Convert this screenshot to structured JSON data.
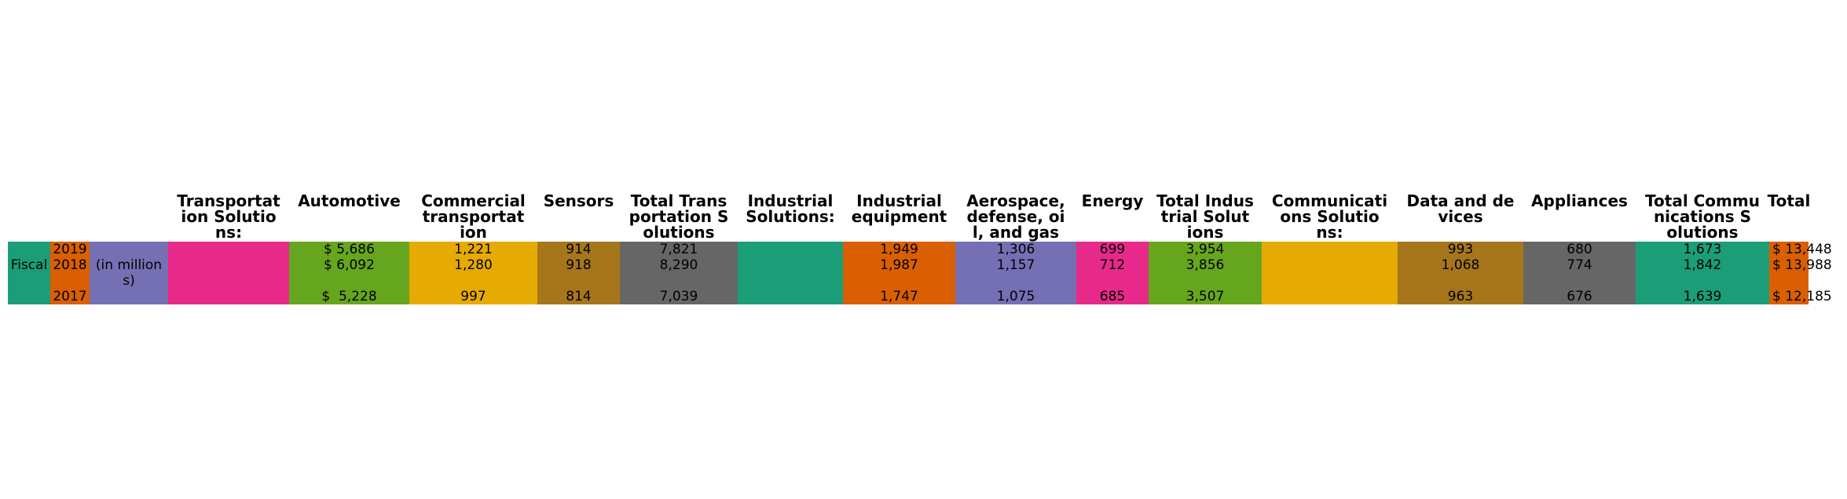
{
  "colors": {
    "teal": "#1b9e77",
    "orange": "#d95f02",
    "purple": "#7570b3",
    "magenta": "#e7298a",
    "green": "#66a61e",
    "yellow": "#e6ab02",
    "brown": "#a6761d",
    "gray": "#666666"
  },
  "chart_data": {
    "type": "table",
    "row_labels": {
      "fiscal": "Fiscal",
      "years": [
        "2019",
        "2018",
        "2017"
      ],
      "unit": "(in million\ns)"
    },
    "columns": [
      {
        "header": "Transportat\nion Solutio\nns:",
        "values": [
          "",
          "",
          ""
        ]
      },
      {
        "header": "Automotive",
        "values": [
          "$ 5,686",
          "$ 6,092",
          "$  5,228"
        ]
      },
      {
        "header": "Commercial\ntransportat\nion",
        "values": [
          "1,221",
          "1,280",
          "997"
        ]
      },
      {
        "header": "Sensors",
        "values": [
          "914",
          "918",
          "814"
        ]
      },
      {
        "header": "Total Trans\nportation S\nolutions",
        "values": [
          "7,821",
          "8,290",
          "7,039"
        ]
      },
      {
        "header": "Industrial\nSolutions:",
        "values": [
          "",
          "",
          ""
        ]
      },
      {
        "header": "Industrial\nequipment",
        "values": [
          "1,949",
          "1,987",
          "1,747"
        ]
      },
      {
        "header": "Aerospace,\ndefense, oi\nl, and gas",
        "values": [
          "1,306",
          "1,157",
          "1,075"
        ]
      },
      {
        "header": "Energy",
        "values": [
          "699",
          "712",
          "685"
        ]
      },
      {
        "header": "Total Indus\ntrial Solut\nions",
        "values": [
          "3,954",
          "3,856",
          "3,507"
        ]
      },
      {
        "header": "Communicati\nons Solutio\nns:",
        "values": [
          "",
          "",
          ""
        ]
      },
      {
        "header": "Data and de\nvices",
        "values": [
          "993",
          "1,068",
          "963"
        ]
      },
      {
        "header": "Appliances",
        "values": [
          "680",
          "774",
          "676"
        ]
      },
      {
        "header": "Total Commu\nnications S\nolutions",
        "values": [
          "1,673",
          "1,842",
          "1,639"
        ]
      },
      {
        "header": "Total",
        "values": [
          "$ 13,448",
          "$ 13,988",
          "$ 12,185"
        ]
      }
    ]
  }
}
